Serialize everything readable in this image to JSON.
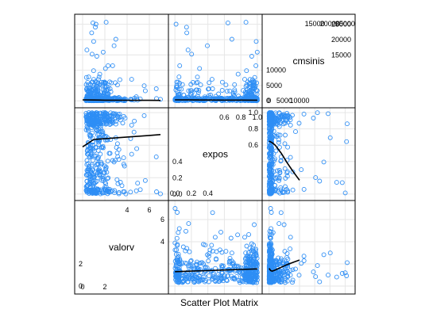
{
  "chart_data": {
    "type": "scatter",
    "subtype": "scatter-plot-matrix",
    "caption": "Scatter Plot Matrix",
    "variables": [
      {
        "name": "valorv",
        "range": [
          -0.5,
          7.5
        ],
        "ticks_low": [
          0,
          2
        ],
        "ticks_high": [
          4,
          6
        ],
        "ticks_low_labels": [
          "0",
          "2"
        ],
        "ticks_high_labels": [
          "4",
          "6"
        ]
      },
      {
        "name": "expos",
        "range": [
          -0.05,
          1.03
        ],
        "ticks_low": [
          0.0,
          0.2,
          0.4
        ],
        "ticks_high": [
          0.6,
          0.8,
          1.0
        ],
        "ticks_low_labels": [
          "0.0",
          "0.2",
          "0.4"
        ],
        "ticks_high_labels": [
          "0.6",
          "0.8",
          "1.0"
        ]
      },
      {
        "name": "cmsinis",
        "range": [
          -1500,
          27500
        ],
        "ticks_low": [
          0,
          5000,
          10000
        ],
        "ticks_high": [
          15000,
          20000,
          25000
        ],
        "ticks_low_labels": [
          "0",
          "5000",
          "10000"
        ],
        "ticks_high_labels": [
          "15000",
          "20000",
          "25000"
        ]
      }
    ],
    "smoothers": {
      "expos_vs_valorv": {
        "x": [
          0,
          1,
          2,
          3,
          4,
          5,
          6,
          7
        ],
        "y": [
          0.58,
          0.67,
          0.68,
          0.69,
          0.7,
          0.71,
          0.72,
          0.73
        ]
      },
      "cmsinis_vs_valorv": {
        "x": [
          0,
          1,
          2,
          3,
          4,
          5,
          6,
          7
        ],
        "y": [
          300,
          250,
          220,
          200,
          180,
          160,
          150,
          140
        ]
      },
      "valorv_vs_expos": {
        "x": [
          0.0,
          0.2,
          0.4,
          0.6,
          0.8,
          1.0
        ],
        "y": [
          1.3,
          1.35,
          1.4,
          1.45,
          1.5,
          1.55
        ]
      },
      "cmsinis_vs_expos": {
        "x": [
          0.0,
          0.2,
          0.4,
          0.6,
          0.8,
          1.0
        ],
        "y": [
          300,
          280,
          260,
          240,
          230,
          220
        ]
      },
      "valorv_vs_cmsinis": {
        "x": [
          0,
          500,
          1000,
          2000,
          4000,
          6000,
          8000,
          10000
        ],
        "y": [
          1.6,
          1.4,
          1.35,
          1.45,
          1.7,
          1.95,
          2.15,
          2.35
        ]
      },
      "expos_vs_cmsinis": {
        "x": [
          0,
          1000,
          2000,
          4000,
          6000,
          8000,
          10000
        ],
        "y": [
          0.65,
          0.63,
          0.6,
          0.5,
          0.38,
          0.27,
          0.17
        ]
      }
    },
    "point_color": "#2e8ef5",
    "grid": true,
    "grid_color": "#e6e6e6"
  }
}
